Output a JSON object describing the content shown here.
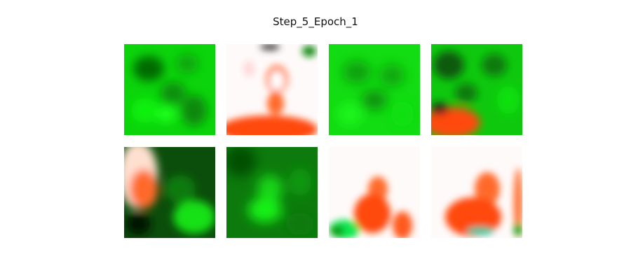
{
  "figure": {
    "title": "Step_5_Epoch_1"
  },
  "palette": {
    "bright_green": "#00f000",
    "mid_green": "#0aa00a",
    "dark_green": "#0b4d0b",
    "orange": "#ff4a0a",
    "white": "#fffafa"
  },
  "images": [
    {
      "row": 1,
      "col": 1,
      "content": "green-blobs"
    },
    {
      "row": 1,
      "col": 2,
      "content": "white-background-orange-figure"
    },
    {
      "row": 1,
      "col": 3,
      "content": "green-blobs"
    },
    {
      "row": 1,
      "col": 4,
      "content": "green-with-orange-bottom-left"
    },
    {
      "row": 2,
      "col": 1,
      "content": "orange-left-dark-green"
    },
    {
      "row": 2,
      "col": 2,
      "content": "green-blobs"
    },
    {
      "row": 2,
      "col": 3,
      "content": "white-background-orange-figure"
    },
    {
      "row": 2,
      "col": 4,
      "content": "white-background-orange-figure"
    }
  ]
}
